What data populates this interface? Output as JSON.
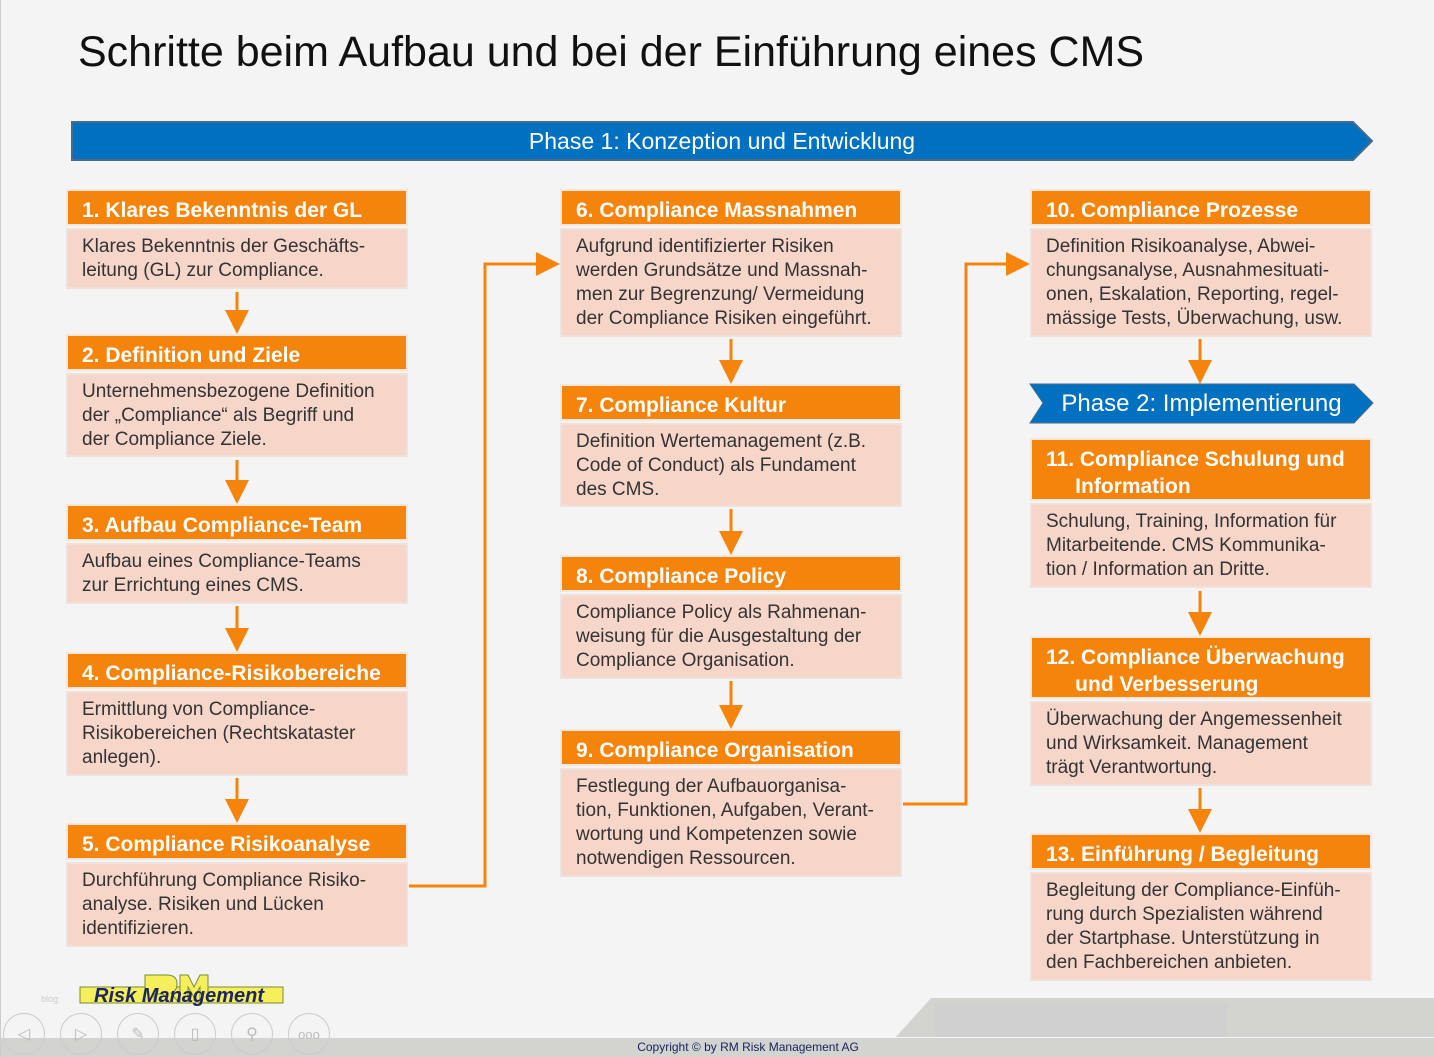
{
  "title": "Schritte beim Aufbau und bei der Einführung eines CMS",
  "phase1": "Phase 1: Konzeption und Entwicklung",
  "phase2": "Phase 2: Implementierung",
  "colors": {
    "header": "#f5840c",
    "body": "#f7d6ca",
    "phase": "#0070c0",
    "arrow": "#f5840c"
  },
  "steps": [
    {
      "title": "1. Klares Bekenntnis der GL",
      "text": "Klares Bekenntnis der Geschäfts-\nleitung (GL) zur Compliance."
    },
    {
      "title": "2. Definition und Ziele",
      "text": "Unternehmensbezogene Definition\nder „Compliance“ als Begriff und\nder Compliance Ziele."
    },
    {
      "title": "3. Aufbau Compliance-Team",
      "text": "Aufbau eines Compliance-Teams\nzur Errichtung eines CMS."
    },
    {
      "title": "4. Compliance-Risikobereiche",
      "text": "Ermittlung von Compliance-\nRisikobereichen (Rechtskataster\nanlegen)."
    },
    {
      "title": "5. Compliance Risikoanalyse",
      "text": "Durchführung Compliance Risiko-\nanalyse. Risiken und Lücken\nidentifizieren."
    },
    {
      "title": "6. Compliance Massnahmen",
      "text": "Aufgrund identifizierter Risiken\nwerden Grundsätze und Massnah-\nmen zur Begrenzung/ Vermeidung\nder Compliance Risiken eingeführt."
    },
    {
      "title": "7. Compliance Kultur",
      "text": "Definition Wertemanagement (z.B.\nCode of Conduct) als Fundament\ndes CMS."
    },
    {
      "title": "8. Compliance Policy",
      "text": "Compliance Policy als Rahmenan-\nweisung für die Ausgestaltung der\nCompliance Organisation."
    },
    {
      "title": "9. Compliance Organisation",
      "text": "Festlegung der Aufbauorganisa-\ntion, Funktionen, Aufgaben, Verant-\nwortung und Kompetenzen sowie\nnotwendigen Ressourcen."
    },
    {
      "title": "10. Compliance Prozesse",
      "text": "Definition Risikoanalyse, Abwei-\nchungsanalyse, Ausnahmesituati-\nonen, Eskalation, Reporting, regel-\nmässige Tests, Überwachung, usw."
    },
    {
      "title": "11. Compliance Schulung und\n     Information",
      "text": "Schulung, Training, Information für\nMitarbeitende. CMS Kommunika-\ntion / Information an Dritte."
    },
    {
      "title": "12. Compliance Überwachung\n     und Verbesserung",
      "text": "Überwachung der Angemessenheit\nund Wirksamkeit. Management\nträgt Verantwortung."
    },
    {
      "title": "13. Einführung / Begleitung",
      "text": "Begleitung der Compliance-Einfüh-\nrung durch Spezialisten während\nder Startphase. Unterstützung in\nden Fachbereichen anbieten."
    }
  ],
  "logo": "Risk Management",
  "footer": {
    "blog": "blog",
    "copyright": "Copyright © by RM Risk Management AG",
    "more": "ooo"
  },
  "nav_icons": [
    "previous-icon",
    "next-icon",
    "pen-icon",
    "slides-icon",
    "zoom-icon",
    "more-icon"
  ]
}
